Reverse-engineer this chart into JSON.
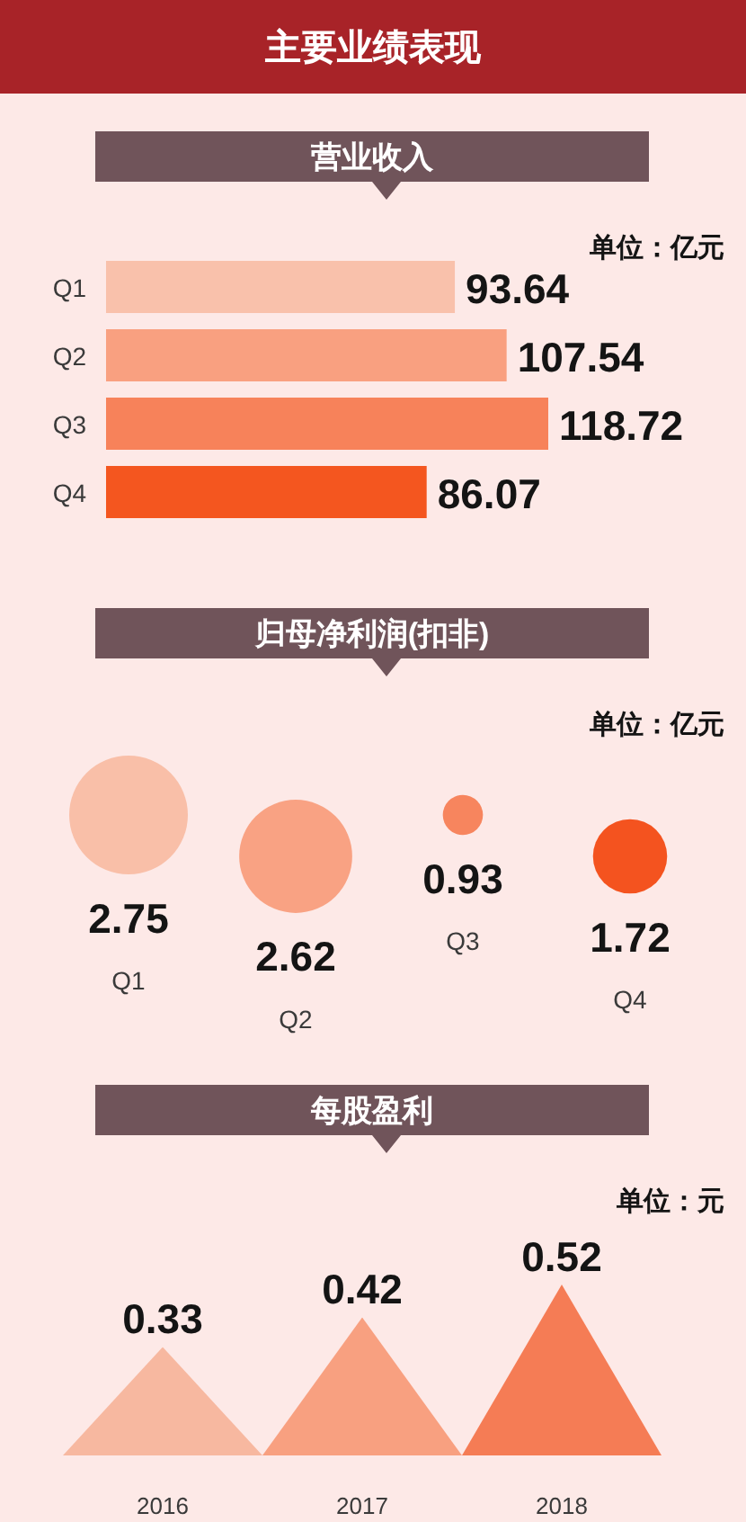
{
  "chart_data": [
    {
      "type": "other",
      "title": "主要业绩表现"
    },
    {
      "type": "bar",
      "orientation": "horizontal",
      "title": "营业收入",
      "annotations": [
        "单位：亿元"
      ],
      "categories": [
        "Q1",
        "Q2",
        "Q3",
        "Q4"
      ],
      "values": [
        93.64,
        107.54,
        118.72,
        86.07
      ],
      "colors": [
        "#f9c1ab",
        "#f9a080",
        "#f7825a",
        "#f4561f"
      ],
      "data_labels": true
    },
    {
      "type": "other",
      "title": "归母净利润(扣非)",
      "annotations": [
        "单位：亿元"
      ],
      "categories": [
        "Q1",
        "Q2",
        "Q3",
        "Q4"
      ],
      "values": [
        2.75,
        2.62,
        0.93,
        1.72
      ],
      "colors": [
        "#f9bfa8",
        "#f9a283",
        "#f7855e",
        "#f4531f"
      ],
      "data_labels": true
    },
    {
      "type": "bar",
      "title": "每股盈利",
      "annotations": [
        "单位：元"
      ],
      "categories": [
        "2016",
        "2017",
        "2018"
      ],
      "values": [
        0.33,
        0.42,
        0.52
      ],
      "colors": [
        "#f7b8a0",
        "#f8a080",
        "#f57c55"
      ],
      "data_labels": true
    }
  ]
}
